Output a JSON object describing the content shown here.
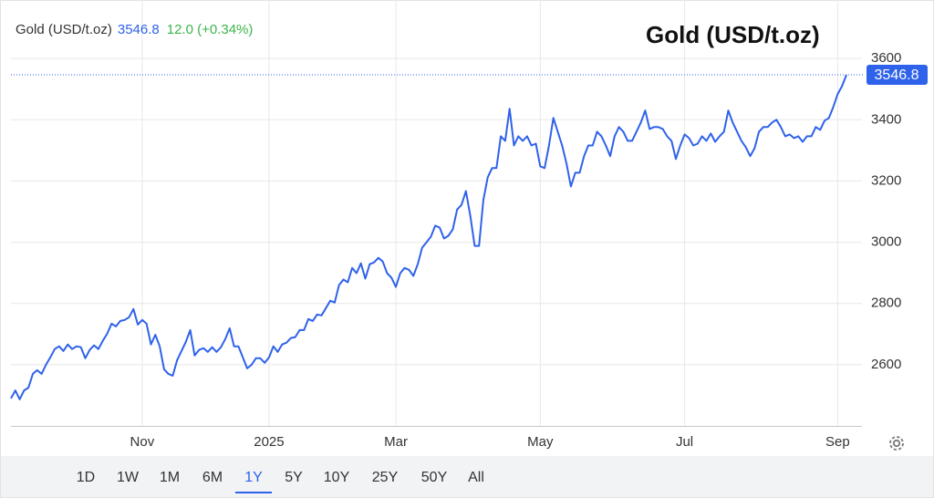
{
  "chart_data": {
    "type": "line",
    "title": "Gold (USD/t.oz)",
    "change": "12.0 (+0.34%)",
    "change_color": "#3cb54a",
    "series": [
      {
        "name": "Gold (USD/t.oz)",
        "color": "#2f62ea",
        "values": [
          2490,
          2516,
          2487,
          2516,
          2525,
          2570,
          2582,
          2570,
          2600,
          2624,
          2651,
          2660,
          2645,
          2666,
          2651,
          2660,
          2657,
          2621,
          2648,
          2663,
          2651,
          2678,
          2701,
          2734,
          2725,
          2743,
          2746,
          2755,
          2782,
          2731,
          2746,
          2734,
          2666,
          2698,
          2660,
          2585,
          2570,
          2564,
          2615,
          2645,
          2675,
          2713,
          2630,
          2648,
          2654,
          2642,
          2657,
          2642,
          2657,
          2684,
          2719,
          2660,
          2660,
          2624,
          2588,
          2600,
          2621,
          2621,
          2606,
          2624,
          2660,
          2642,
          2666,
          2672,
          2687,
          2690,
          2713,
          2713,
          2749,
          2743,
          2764,
          2761,
          2785,
          2809,
          2803,
          2860,
          2878,
          2869,
          2916,
          2899,
          2931,
          2881,
          2928,
          2934,
          2949,
          2937,
          2899,
          2884,
          2854,
          2899,
          2916,
          2910,
          2890,
          2928,
          2982,
          3000,
          3018,
          3054,
          3048,
          3012,
          3021,
          3042,
          3107,
          3122,
          3167,
          3087,
          2988,
          2988,
          3137,
          3212,
          3242,
          3242,
          3346,
          3331,
          3436,
          3316,
          3346,
          3331,
          3346,
          3316,
          3322,
          3248,
          3242,
          3316,
          3406,
          3361,
          3316,
          3257,
          3182,
          3227,
          3227,
          3281,
          3316,
          3316,
          3361,
          3346,
          3316,
          3281,
          3346,
          3376,
          3361,
          3331,
          3331,
          3361,
          3391,
          3430,
          3370,
          3376,
          3376,
          3370,
          3346,
          3331,
          3272,
          3316,
          3352,
          3340,
          3316,
          3322,
          3346,
          3331,
          3355,
          3328,
          3346,
          3361,
          3430,
          3391,
          3361,
          3331,
          3310,
          3281,
          3307,
          3361,
          3376,
          3376,
          3391,
          3400,
          3376,
          3346,
          3352,
          3340,
          3346,
          3328,
          3346,
          3346,
          3376,
          3367,
          3397,
          3406,
          3442,
          3484,
          3510,
          3546.8
        ]
      }
    ],
    "xlim": [
      0,
      191
    ],
    "xticks": [
      {
        "value": 30,
        "label": "Nov"
      },
      {
        "value": 59,
        "label": "2025"
      },
      {
        "value": 88,
        "label": "Mar"
      },
      {
        "value": 121,
        "label": "May"
      },
      {
        "value": 154,
        "label": "Jul"
      },
      {
        "value": 189,
        "label": "Sep"
      }
    ],
    "ylim": [
      2400,
      3800
    ],
    "yticks": [
      2600,
      2800,
      3000,
      3200,
      3400,
      3600
    ],
    "grid": true,
    "ranges": [
      "1D",
      "1W",
      "1M",
      "6M",
      "1Y",
      "5Y",
      "10Y",
      "25Y",
      "50Y",
      "All"
    ],
    "selected_range": 4
  }
}
